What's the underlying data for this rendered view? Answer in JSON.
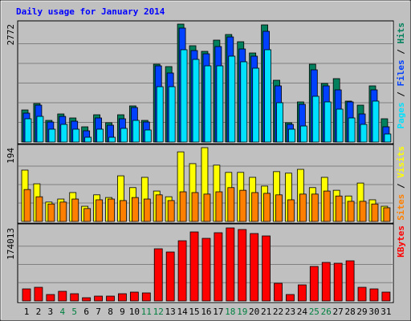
{
  "chart_data": [
    {
      "type": "bar",
      "title": "Daily usage for January 2014",
      "legend_separator": " / ",
      "ylim": [
        0,
        2772
      ],
      "yticks": [
        2772
      ],
      "grid": true,
      "series": [
        {
          "name": "Hits",
          "color": "#00805c",
          "values": [
            754,
            905,
            509,
            660,
            566,
            358,
            641,
            453,
            641,
            849,
            509,
            1829,
            1773,
            2772,
            2263,
            2131,
            2395,
            2527,
            2357,
            2093,
            2753,
            1452,
            453,
            943,
            1829,
            1377,
            1490,
            962,
            867,
            1320,
            547
          ]
        },
        {
          "name": "Files",
          "color": "#0040ff",
          "values": [
            679,
            867,
            471,
            603,
            490,
            264,
            566,
            396,
            547,
            811,
            471,
            1791,
            1622,
            2678,
            2150,
            2074,
            2244,
            2470,
            2187,
            2018,
            2602,
            1320,
            415,
            886,
            1697,
            1320,
            1226,
            943,
            660,
            1226,
            358
          ]
        },
        {
          "name": "Pages",
          "color": "#00e0ff",
          "values": [
            547,
            603,
            302,
            415,
            302,
            113,
            302,
            113,
            321,
            509,
            283,
            1301,
            1301,
            2169,
            1942,
            1791,
            1791,
            2018,
            1886,
            1735,
            2169,
            924,
            302,
            377,
            1075,
            943,
            773,
            566,
            415,
            962,
            189
          ]
        }
      ]
    },
    {
      "type": "bar",
      "ylim": [
        0,
        194
      ],
      "yticks": [
        194
      ],
      "grid": true,
      "legend_separator": " / ",
      "series": [
        {
          "name": "Visits",
          "color": "#ffff00",
          "values": [
            135,
            99,
            51,
            59,
            76,
            40,
            70,
            63,
            120,
            89,
            116,
            80,
            65,
            183,
            152,
            194,
            148,
            129,
            129,
            116,
            93,
            131,
            127,
            137,
            89,
            116,
            82,
            67,
            101,
            57,
            40
          ]
        },
        {
          "name": "Sites",
          "color": "#ff8000",
          "values": [
            84,
            65,
            46,
            51,
            59,
            34,
            57,
            59,
            55,
            63,
            59,
            70,
            55,
            78,
            76,
            72,
            78,
            89,
            82,
            76,
            74,
            70,
            57,
            72,
            72,
            80,
            67,
            53,
            53,
            46,
            36
          ]
        }
      ]
    },
    {
      "type": "bar",
      "ylim": [
        0,
        174013
      ],
      "yticks": [
        174013
      ],
      "grid": true,
      "categories": [
        "1",
        "2",
        "3",
        "4",
        "5",
        "6",
        "7",
        "8",
        "9",
        "10",
        "11",
        "12",
        "13",
        "14",
        "15",
        "16",
        "17",
        "18",
        "19",
        "20",
        "21",
        "22",
        "23",
        "24",
        "25",
        "26",
        "27",
        "28",
        "29",
        "30",
        "31"
      ],
      "category_colors": [
        "#000000",
        "#000000",
        "#000000",
        "#008040",
        "#008040",
        "#000000",
        "#000000",
        "#000000",
        "#000000",
        "#000000",
        "#008040",
        "#008040",
        "#000000",
        "#000000",
        "#000000",
        "#000000",
        "#000000",
        "#008040",
        "#008040",
        "#000000",
        "#000000",
        "#000000",
        "#000000",
        "#000000",
        "#008040",
        "#008040",
        "#000000",
        "#000000",
        "#000000",
        "#000000",
        "#000000"
      ],
      "series": [
        {
          "name": "KBytes",
          "color": "#ff0000",
          "values": [
            28683,
            32507,
            15298,
            22946,
            17210,
            7649,
            11473,
            11473,
            17210,
            21034,
            19122,
            124293,
            116644,
            143415,
            164449,
            149152,
            162537,
            174013,
            170189,
            160625,
            154888,
            42068,
            15298,
            38244,
            82225,
            91786,
            89873,
            95610,
            32507,
            28683,
            21034
          ]
        }
      ]
    }
  ]
}
